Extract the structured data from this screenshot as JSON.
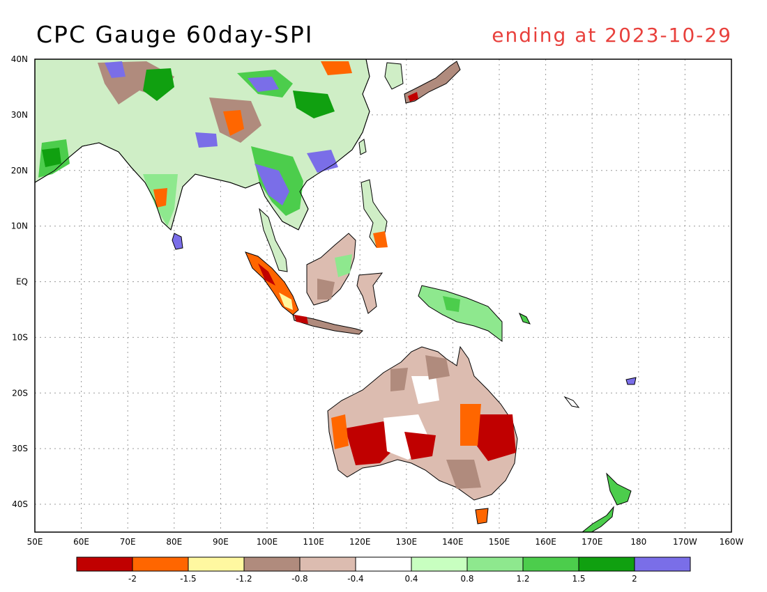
{
  "title": "CPC Gauge 60day-SPI",
  "subtitle": "ending at 2023-10-29",
  "map": {
    "lon_range": [
      50,
      200
    ],
    "lat_range": [
      -45,
      40
    ],
    "lon_labels": [
      "50E",
      "60E",
      "70E",
      "80E",
      "90E",
      "100E",
      "110E",
      "120E",
      "130E",
      "140E",
      "150E",
      "160E",
      "170E",
      "180",
      "170W",
      "160W"
    ],
    "lat_labels": [
      {
        "lat": 40,
        "label": "40N"
      },
      {
        "lat": 30,
        "label": "30N"
      },
      {
        "lat": 20,
        "label": "20N"
      },
      {
        "lat": 10,
        "label": "10N"
      },
      {
        "lat": 0,
        "label": "EQ"
      },
      {
        "lat": -10,
        "label": "10S"
      },
      {
        "lat": -20,
        "label": "20S"
      },
      {
        "lat": -30,
        "label": "30S"
      },
      {
        "lat": -40,
        "label": "40S"
      }
    ]
  },
  "legend": {
    "colors": [
      "#c00000",
      "#ff6600",
      "#fff8a0",
      "#b08b7d",
      "#dcbcb0",
      "#ffffff",
      "#c8ffc0",
      "#8ee88e",
      "#4ccd4c",
      "#10a010",
      "#7a6ee8"
    ],
    "labels": [
      "-2",
      "-1.5",
      "-1.2",
      "-0.8",
      "-0.4",
      "0.4",
      "0.8",
      "1.2",
      "1.5",
      "2"
    ]
  }
}
